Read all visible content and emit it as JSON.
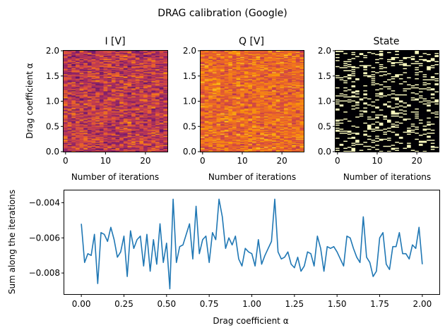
{
  "figure_title": "DRAG calibration (Google)",
  "chart_data": [
    {
      "type": "heatmap",
      "title": "I [V]",
      "xlabel": "Number of iterations",
      "ylabel": "Drag coefficient α",
      "xlim": [
        -0.5,
        25.5
      ],
      "ylim": [
        0,
        2
      ],
      "n_iterations": 26,
      "n_alpha": 100,
      "colormap": "magma",
      "xticks": [
        "0",
        "10",
        "20"
      ],
      "yticks": [
        "0.0",
        "0.5",
        "1.0",
        "1.5",
        "2.0"
      ],
      "palette": [
        "#1b0c41",
        "#4a0c6b",
        "#781c6d",
        "#a52c60",
        "#cf4446",
        "#ed6925",
        "#fb9b06",
        "#f7d13d",
        "#fcffa4"
      ],
      "values_seed": 11,
      "value_range": [
        0.15,
        0.75
      ]
    },
    {
      "type": "heatmap",
      "title": "Q [V]",
      "xlabel": "Number of iterations",
      "ylabel": "",
      "xlim": [
        -0.5,
        25.5
      ],
      "ylim": [
        0,
        2
      ],
      "n_iterations": 26,
      "n_alpha": 100,
      "colormap": "magma",
      "xticks": [
        "0",
        "10",
        "20"
      ],
      "yticks": [
        "0.0",
        "0.5",
        "1.0",
        "1.5",
        "2.0"
      ],
      "palette": [
        "#1b0c41",
        "#4a0c6b",
        "#781c6d",
        "#a52c60",
        "#cf4446",
        "#ed6925",
        "#fb9b06",
        "#f7d13d",
        "#fcffa4"
      ],
      "values_seed": 23,
      "value_range": [
        0.4,
        0.85
      ]
    },
    {
      "type": "heatmap",
      "title": "State",
      "xlabel": "Number of iterations",
      "ylabel": "",
      "xlim": [
        -0.5,
        25.5
      ],
      "ylim": [
        0,
        2
      ],
      "n_iterations": 26,
      "n_alpha": 100,
      "colormap": "magma",
      "binary": true,
      "state_one_fraction": 0.2,
      "xticks": [
        "0",
        "10",
        "20"
      ],
      "yticks": [
        "0.0",
        "0.5",
        "1.0",
        "1.5",
        "2.0"
      ],
      "palette": [
        "#000004",
        "#fcfdbf"
      ],
      "values_seed": 37
    },
    {
      "type": "line",
      "title": "",
      "xlabel": "Drag coefficient α",
      "ylabel": "Sum along the iterations",
      "xlim": [
        -0.1,
        2.1
      ],
      "ylim": [
        -0.0092,
        -0.0033
      ],
      "xticks": [
        0.0,
        0.25,
        0.5,
        0.75,
        1.0,
        1.25,
        1.5,
        1.75,
        2.0
      ],
      "xtick_labels": [
        "0.00",
        "0.25",
        "0.50",
        "0.75",
        "1.00",
        "1.25",
        "1.50",
        "1.75",
        "2.00"
      ],
      "yticks": [
        -0.008,
        -0.006,
        -0.004
      ],
      "ytick_labels": [
        "−0.008",
        "−0.006",
        "−0.004"
      ],
      "line_color": "#1f77b4",
      "series": [
        {
          "x_start": 0.0,
          "x_end": 2.0,
          "values": [
            -0.0052,
            -0.0074,
            -0.0069,
            -0.007,
            -0.0058,
            -0.0086,
            -0.0057,
            -0.0058,
            -0.0062,
            -0.0054,
            -0.0061,
            -0.0071,
            -0.0068,
            -0.0059,
            -0.0082,
            -0.0056,
            -0.0066,
            -0.0061,
            -0.0059,
            -0.0076,
            -0.0058,
            -0.0079,
            -0.0061,
            -0.0075,
            -0.0052,
            -0.0074,
            -0.0063,
            -0.0089,
            -0.0038,
            -0.0074,
            -0.0065,
            -0.0064,
            -0.0058,
            -0.0052,
            -0.0072,
            -0.0042,
            -0.0069,
            -0.0061,
            -0.0059,
            -0.0074,
            -0.0057,
            -0.0061,
            -0.0038,
            -0.0048,
            -0.0066,
            -0.006,
            -0.0064,
            -0.0059,
            -0.0072,
            -0.0076,
            -0.0066,
            -0.0068,
            -0.0069,
            -0.0076,
            -0.0061,
            -0.0075,
            -0.007,
            -0.0066,
            -0.0062,
            -0.0038,
            -0.0068,
            -0.0072,
            -0.0071,
            -0.0068,
            -0.0075,
            -0.0077,
            -0.0071,
            -0.0079,
            -0.0076,
            -0.0068,
            -0.0069,
            -0.0076,
            -0.0059,
            -0.0066,
            -0.0079,
            -0.0065,
            -0.0066,
            -0.0065,
            -0.0068,
            -0.0072,
            -0.0076,
            -0.0059,
            -0.006,
            -0.0066,
            -0.0071,
            -0.0074,
            -0.0048,
            -0.0071,
            -0.0074,
            -0.0082,
            -0.0079,
            -0.006,
            -0.0057,
            -0.0075,
            -0.0078,
            -0.0065,
            -0.0065,
            -0.0057,
            -0.0069,
            -0.0069,
            -0.0072,
            -0.0064,
            -0.0066,
            -0.0054,
            -0.0075
          ]
        }
      ]
    }
  ]
}
